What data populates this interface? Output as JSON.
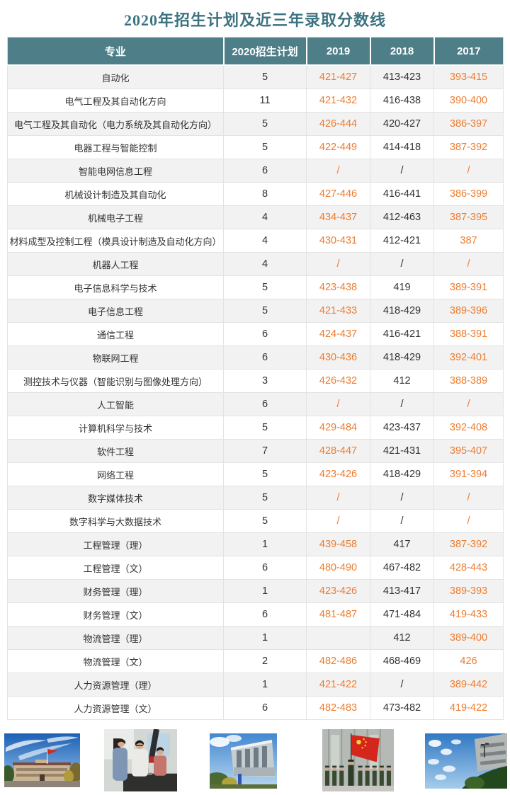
{
  "title": "2020年招生计划及近三年录取分数线",
  "colors": {
    "header_bg": "#4E7E88",
    "title": "#3C7380",
    "orange": "#ED7D31",
    "dark": "#333333",
    "stripe": "#F2F2F2",
    "border": "#E3E3E3"
  },
  "table": {
    "columns": [
      {
        "key": "major",
        "label": "专业"
      },
      {
        "key": "plan",
        "label": "2020招生计划"
      },
      {
        "key": "y2019",
        "label": "2019"
      },
      {
        "key": "y2018",
        "label": "2018"
      },
      {
        "key": "y2017",
        "label": "2017"
      }
    ],
    "rows": [
      {
        "major": "自动化",
        "plan": "5",
        "y2019": "421-427",
        "y2018": "413-423",
        "y2017": "393-415"
      },
      {
        "major": "电气工程及其自动化方向",
        "plan": "11",
        "y2019": "421-432",
        "y2018": "416-438",
        "y2017": "390-400"
      },
      {
        "major": "电气工程及其自动化（电力系统及其自动化方向）",
        "plan": "5",
        "y2019": "426-444",
        "y2018": "420-427",
        "y2017": "386-397"
      },
      {
        "major": "电器工程与智能控制",
        "plan": "5",
        "y2019": "422-449",
        "y2018": "414-418",
        "y2017": "387-392"
      },
      {
        "major": "智能电网信息工程",
        "plan": "6",
        "y2019": "/",
        "y2018": "/",
        "y2017": "/"
      },
      {
        "major": "机械设计制造及其自动化",
        "plan": "8",
        "y2019": "427-446",
        "y2018": "416-441",
        "y2017": "386-399"
      },
      {
        "major": "机械电子工程",
        "plan": "4",
        "y2019": "434-437",
        "y2018": "412-463",
        "y2017": "387-395"
      },
      {
        "major": "材料成型及控制工程（模具设计制造及自动化方向）",
        "plan": "4",
        "y2019": "430-431",
        "y2018": "412-421",
        "y2017": "387"
      },
      {
        "major": "机器人工程",
        "plan": "4",
        "y2019": "/",
        "y2018": "/",
        "y2017": "/"
      },
      {
        "major": "电子信息科学与技术",
        "plan": "5",
        "y2019": "423-438",
        "y2018": "419",
        "y2017": "389-391"
      },
      {
        "major": "电子信息工程",
        "plan": "5",
        "y2019": "421-433",
        "y2018": "418-429",
        "y2017": "389-396"
      },
      {
        "major": "通信工程",
        "plan": "6",
        "y2019": "424-437",
        "y2018": "416-421",
        "y2017": "388-391"
      },
      {
        "major": "物联网工程",
        "plan": "6",
        "y2019": "430-436",
        "y2018": "418-429",
        "y2017": "392-401"
      },
      {
        "major": "测控技术与仪器（智能识别与图像处理方向）",
        "plan": "3",
        "y2019": "426-432",
        "y2018": "412",
        "y2017": "388-389"
      },
      {
        "major": "人工智能",
        "plan": "6",
        "y2019": "/",
        "y2018": "/",
        "y2017": "/"
      },
      {
        "major": "计算机科学与技术",
        "plan": "5",
        "y2019": "429-484",
        "y2018": "423-437",
        "y2017": "392-408"
      },
      {
        "major": "软件工程",
        "plan": "7",
        "y2019": "428-447",
        "y2018": "421-431",
        "y2017": "395-407"
      },
      {
        "major": "网络工程",
        "plan": "5",
        "y2019": "423-426",
        "y2018": "418-429",
        "y2017": "391-394"
      },
      {
        "major": "数字媒体技术",
        "plan": "5",
        "y2019": "/",
        "y2018": "/",
        "y2017": "/"
      },
      {
        "major": "数字科学与大数据技术",
        "plan": "5",
        "y2019": "/",
        "y2018": "/",
        "y2017": "/"
      },
      {
        "major": "工程管理（理）",
        "plan": "1",
        "y2019": "439-458",
        "y2018": "417",
        "y2017": "387-392"
      },
      {
        "major": "工程管理（文）",
        "plan": "6",
        "y2019": "480-490",
        "y2018": "467-482",
        "y2017": "428-443"
      },
      {
        "major": "财务管理（理）",
        "plan": "1",
        "y2019": "423-426",
        "y2018": "413-417",
        "y2017": "389-393"
      },
      {
        "major": "财务管理（文）",
        "plan": "6",
        "y2019": "481-487",
        "y2018": "471-484",
        "y2017": "419-433"
      },
      {
        "major": "物流管理（理）",
        "plan": "1",
        "y2019": "",
        "y2018": "412",
        "y2017": "389-400"
      },
      {
        "major": "物流管理（文）",
        "plan": "2",
        "y2019": "482-486",
        "y2018": "468-469",
        "y2017": "426"
      },
      {
        "major": "人力资源管理（理）",
        "plan": "1",
        "y2019": "421-422",
        "y2018": "/",
        "y2017": "389-442"
      },
      {
        "major": "人力资源管理（文）",
        "plan": "6",
        "y2019": "482-483",
        "y2018": "473-482",
        "y2017": "419-422"
      }
    ]
  },
  "photos": [
    {
      "name": "campus-main-building-with-flag-photo"
    },
    {
      "name": "students-lab-experiment-photo"
    },
    {
      "name": "modern-teaching-building-photo"
    },
    {
      "name": "flag-raising-ceremony-photo"
    },
    {
      "name": "campus-sky-building-photo"
    }
  ]
}
